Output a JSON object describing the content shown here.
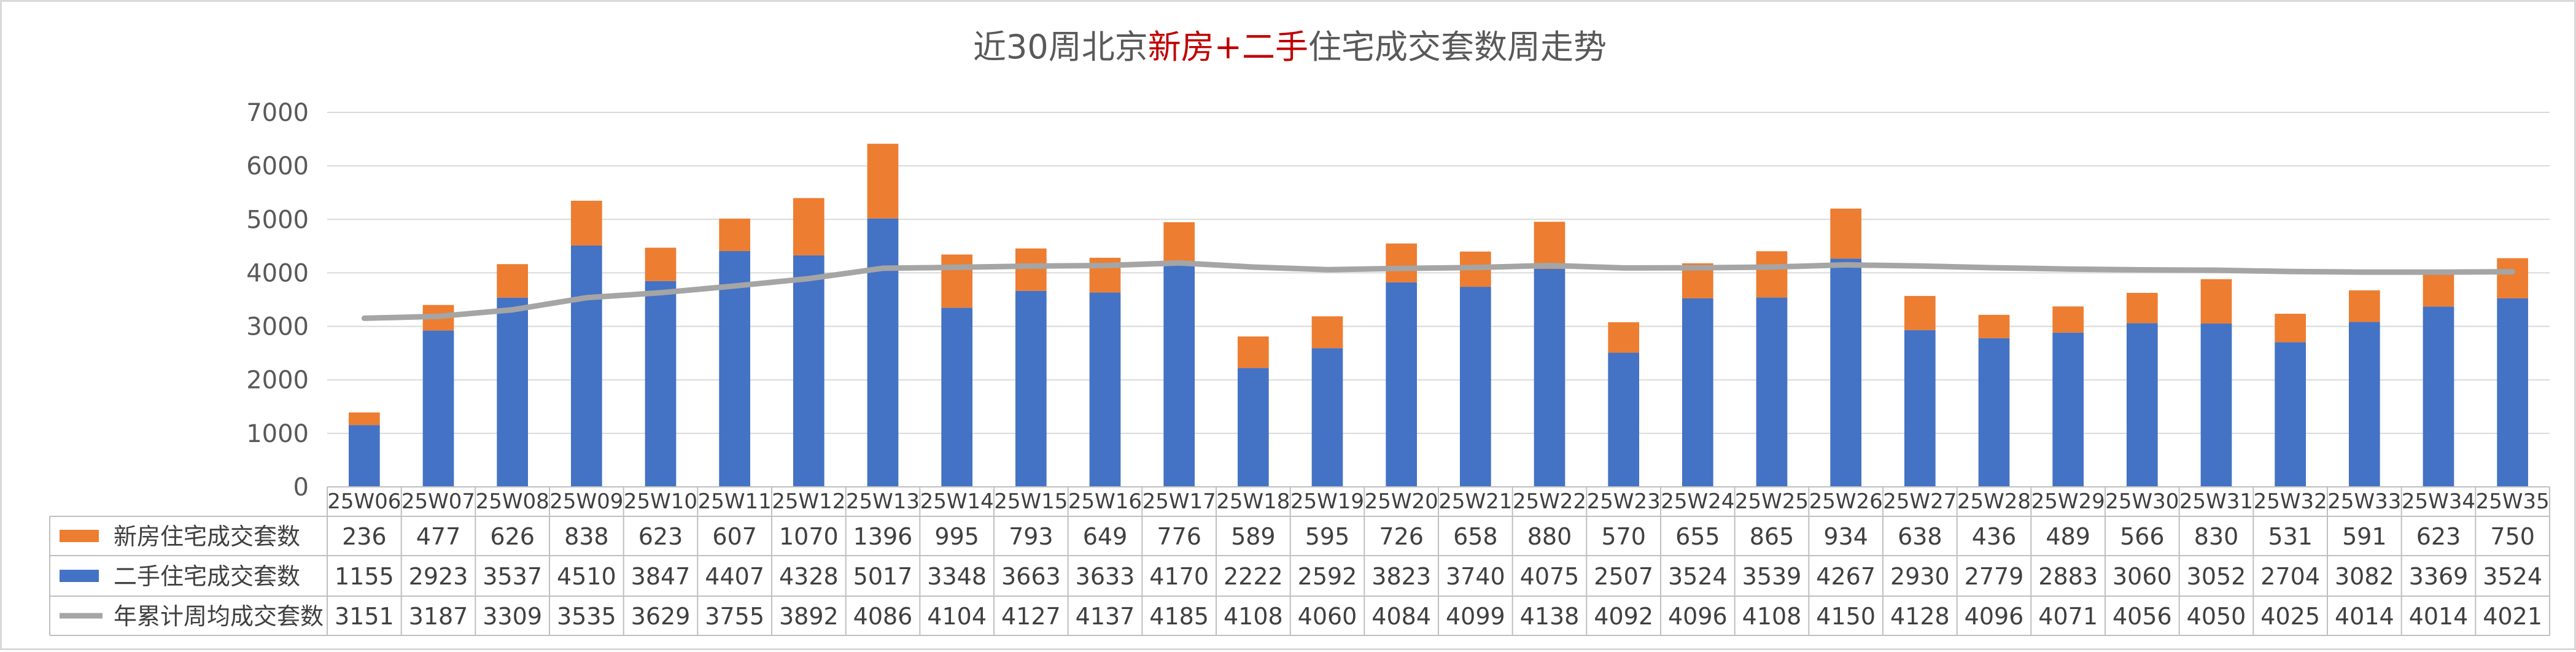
{
  "chart_data": {
    "type": "bar",
    "stacked": true,
    "title_parts": [
      {
        "text": "近30周北京",
        "color": "#595959"
      },
      {
        "text": "新房+二手",
        "color": "#c00000"
      },
      {
        "text": "住宅成交套数周走势",
        "color": "#595959"
      }
    ],
    "categories": [
      "25W06",
      "25W07",
      "25W08",
      "25W09",
      "25W10",
      "25W11",
      "25W12",
      "25W13",
      "25W14",
      "25W15",
      "25W16",
      "25W17",
      "25W18",
      "25W19",
      "25W20",
      "25W21",
      "25W22",
      "25W23",
      "25W24",
      "25W25",
      "25W26",
      "25W27",
      "25W28",
      "25W29",
      "25W30",
      "25W31",
      "25W32",
      "25W33",
      "25W34",
      "25W35"
    ],
    "series": [
      {
        "name": "新房住宅成交套数",
        "kind": "bar",
        "color": "#ed7d31",
        "values": [
          236,
          477,
          626,
          838,
          623,
          607,
          1070,
          1396,
          995,
          793,
          649,
          776,
          589,
          595,
          726,
          658,
          880,
          570,
          655,
          865,
          934,
          638,
          436,
          489,
          566,
          830,
          531,
          591,
          623,
          750
        ]
      },
      {
        "name": "二手住宅成交套数",
        "kind": "bar",
        "color": "#4472c4",
        "values": [
          1155,
          2923,
          3537,
          4510,
          3847,
          4407,
          4328,
          5017,
          3348,
          3663,
          3633,
          4170,
          2222,
          2592,
          3823,
          3740,
          4075,
          2507,
          3524,
          3539,
          4267,
          2930,
          2779,
          2883,
          3060,
          3052,
          2704,
          3082,
          3369,
          3524
        ]
      },
      {
        "name": "年累计周均成交套数",
        "kind": "line",
        "color": "#a5a5a5",
        "values": [
          3151,
          3187,
          3309,
          3535,
          3629,
          3755,
          3892,
          4086,
          4104,
          4127,
          4137,
          4185,
          4108,
          4060,
          4084,
          4099,
          4138,
          4092,
          4096,
          4108,
          4150,
          4128,
          4096,
          4071,
          4056,
          4050,
          4025,
          4014,
          4014,
          4021
        ]
      }
    ],
    "ylim": [
      0,
      7000
    ],
    "yticks": [
      "0",
      "1000",
      "2000",
      "3000",
      "4000",
      "5000",
      "6000",
      "7000"
    ],
    "grid": true,
    "legend": "data-table"
  }
}
